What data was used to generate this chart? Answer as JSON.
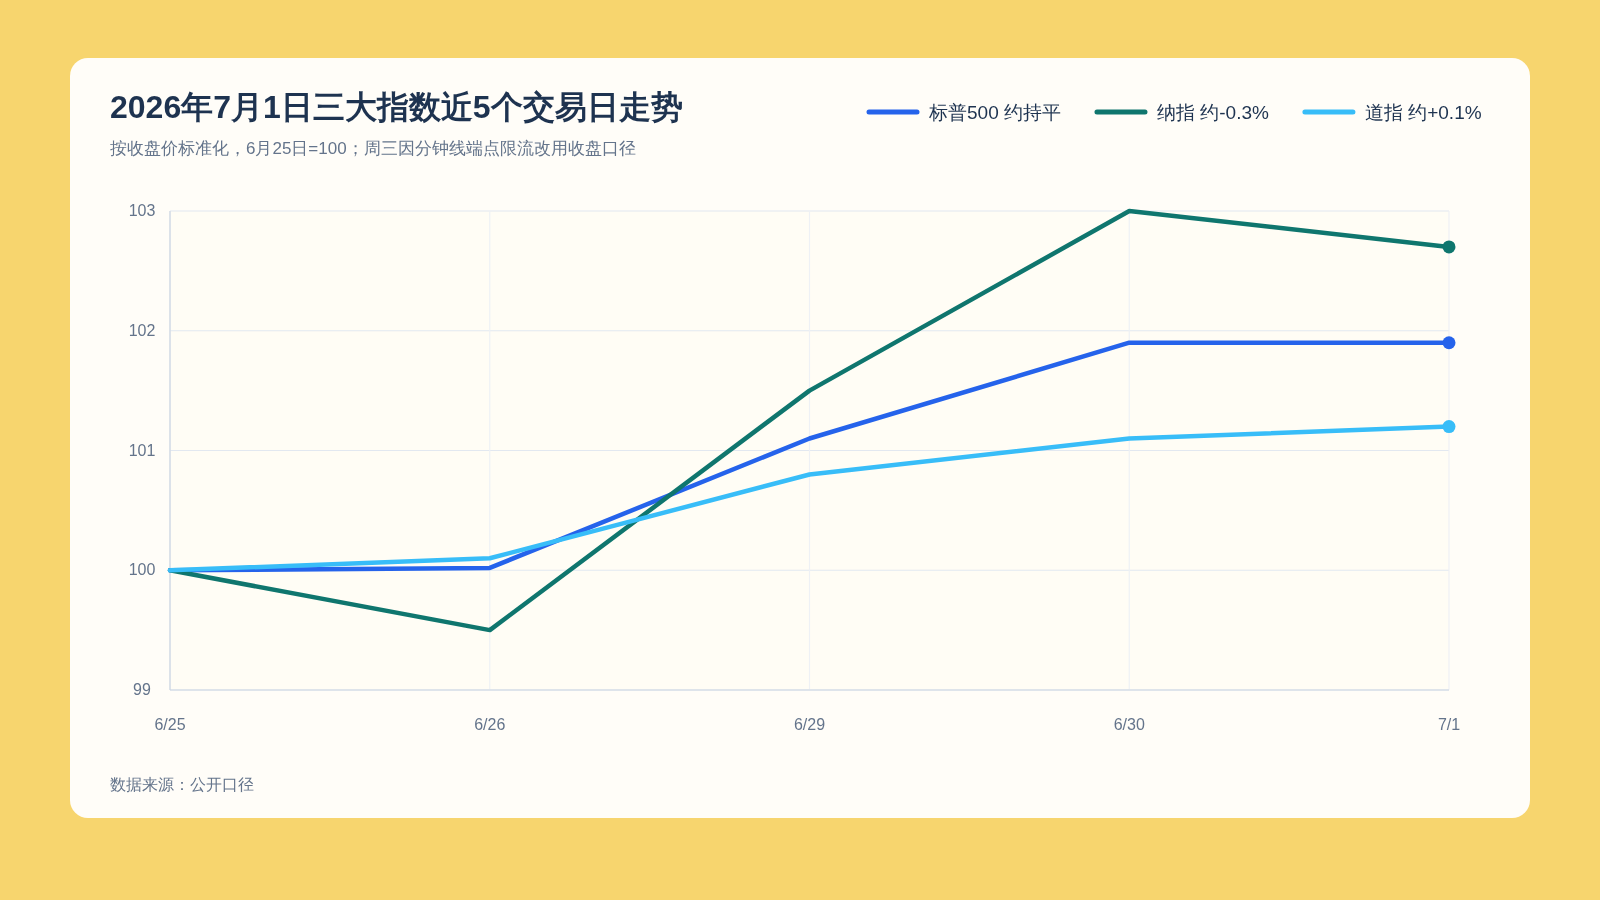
{
  "chart_data": {
    "type": "line",
    "title": "2026年7月1日三大指数近5个交易日走势",
    "subtitle": "按收盘价标准化，6月25日=100；周三因分钟线端点限流改用收盘口径",
    "annotations": [
      "数据来源：公开口径"
    ],
    "categories": [
      "6/25",
      "6/26",
      "6/29",
      "6/30",
      "7/1"
    ],
    "series": [
      {
        "name": "标普500 约持平",
        "color": "#2563eb",
        "values": [
          100,
          100.02,
          101.1,
          101.9,
          101.9
        ]
      },
      {
        "name": "纳指 约-0.3%",
        "color": "#0f766e",
        "values": [
          100,
          99.5,
          101.5,
          103,
          102.7
        ]
      },
      {
        "name": "道指 约+0.1%",
        "color": "#38bdf8",
        "values": [
          100,
          100.1,
          100.8,
          101.1,
          101.2
        ]
      },
      {
        "type": "scatter",
        "color": "#2563eb",
        "values": [
          null,
          null,
          null,
          null,
          101.9
        ]
      },
      {
        "type": "scatter",
        "color": "#0f766e",
        "values": [
          null,
          null,
          null,
          null,
          102.7
        ]
      },
      {
        "type": "scatter",
        "color": "#38bdf8",
        "values": [
          null,
          null,
          null,
          null,
          101.2
        ]
      }
    ],
    "ylim": [
      99,
      103
    ],
    "yticks": [
      99,
      100,
      101,
      102,
      103
    ],
    "grid": true,
    "legend": "top right",
    "line_style": "solid"
  }
}
